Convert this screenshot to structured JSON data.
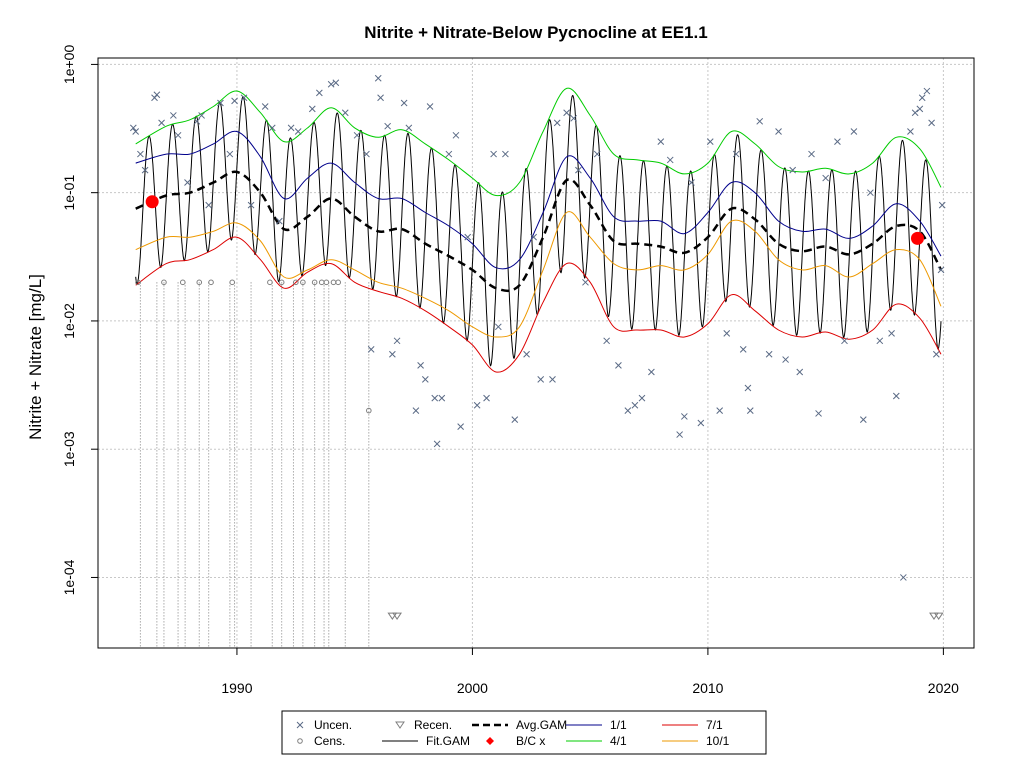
{
  "chart_data": {
    "type": "line",
    "title": "Nitrite + Nitrate-Below Pycnocline at EE1.1",
    "xlabel": "",
    "ylabel": "Nitrite + Nitrate [mg/L]",
    "xlim": [
      1984.1,
      2021.3
    ],
    "ylim_log10": [
      -4.55,
      0.05
    ],
    "y_scale": "log",
    "grid": true,
    "x_ticks": [
      1990,
      2000,
      2010,
      2020
    ],
    "y_ticks": [
      {
        "value": 1.0,
        "label": "1e+00"
      },
      {
        "value": 0.1,
        "label": "1e-01"
      },
      {
        "value": 0.01,
        "label": "1e-02"
      },
      {
        "value": 0.001,
        "label": "1e-03"
      },
      {
        "value": 0.0001,
        "label": "1e-04"
      }
    ],
    "colors": {
      "uncensored": "#5a6a85",
      "censored": "#7f7f7f",
      "avg_gam": "#000000",
      "fit_gam": "#000000",
      "bc": "#ff0000",
      "jan": "#00008b",
      "apr": "#00cc00",
      "jul": "#dd0000",
      "oct": "#ee9900",
      "grid": "#c8c8c8"
    },
    "series": [
      {
        "name": "Avg.GAM",
        "style": "dashed-thick",
        "x": [
          1985.7,
          1987,
          1988,
          1989,
          1990,
          1991,
          1992,
          1993,
          1994,
          1995,
          1996,
          1997,
          1998,
          1999,
          2000,
          2001,
          2002,
          2003,
          2004,
          2005,
          2006,
          2007,
          2008,
          2009,
          2010,
          2011,
          2012,
          2013,
          2014,
          2015,
          2016,
          2017,
          2018,
          2019,
          2019.9
        ],
        "y": [
          0.075,
          0.095,
          0.1,
          0.12,
          0.145,
          0.1,
          0.052,
          0.065,
          0.09,
          0.065,
          0.05,
          0.052,
          0.04,
          0.032,
          0.025,
          0.018,
          0.019,
          0.045,
          0.125,
          0.08,
          0.042,
          0.04,
          0.038,
          0.034,
          0.045,
          0.075,
          0.062,
          0.04,
          0.035,
          0.038,
          0.033,
          0.04,
          0.055,
          0.05,
          0.025
        ]
      },
      {
        "name": "1/1",
        "x": [
          1985.7,
          1987,
          1988,
          1989,
          1990,
          1991,
          1992,
          1993,
          1994,
          1995,
          1996,
          1997,
          1998,
          1999,
          2000,
          2001,
          2002,
          2003,
          2004,
          2005,
          2006,
          2007,
          2008,
          2009,
          2010,
          2011,
          2012,
          2013,
          2014,
          2015,
          2016,
          2017,
          2018,
          2019,
          2019.9
        ],
        "y": [
          0.17,
          0.2,
          0.2,
          0.24,
          0.3,
          0.19,
          0.09,
          0.13,
          0.17,
          0.12,
          0.09,
          0.09,
          0.07,
          0.055,
          0.04,
          0.026,
          0.03,
          0.07,
          0.19,
          0.13,
          0.065,
          0.06,
          0.06,
          0.048,
          0.07,
          0.12,
          0.1,
          0.06,
          0.05,
          0.052,
          0.044,
          0.055,
          0.082,
          0.06,
          0.032
        ]
      },
      {
        "name": "4/1",
        "x": [
          1985.7,
          1987,
          1988,
          1989,
          1990,
          1991,
          1992,
          1993,
          1994,
          1995,
          1996,
          1997,
          1998,
          1999,
          2000,
          2001,
          2002,
          2003,
          2004,
          2005,
          2006,
          2007,
          2008,
          2009,
          2010,
          2011,
          2012,
          2013,
          2014,
          2015,
          2016,
          2017,
          2018,
          2019,
          2019.9
        ],
        "y": [
          0.24,
          0.33,
          0.37,
          0.47,
          0.62,
          0.42,
          0.25,
          0.32,
          0.46,
          0.32,
          0.27,
          0.31,
          0.24,
          0.18,
          0.13,
          0.095,
          0.12,
          0.3,
          0.65,
          0.4,
          0.2,
          0.18,
          0.17,
          0.14,
          0.17,
          0.3,
          0.24,
          0.16,
          0.145,
          0.155,
          0.14,
          0.17,
          0.27,
          0.22,
          0.11
        ]
      },
      {
        "name": "7/1",
        "x": [
          1985.7,
          1987,
          1988,
          1989,
          1990,
          1991,
          1992,
          1993,
          1994,
          1995,
          1996,
          1997,
          1998,
          1999,
          2000,
          2001,
          2002,
          2003,
          2004,
          2005,
          2006,
          2007,
          2008,
          2009,
          2010,
          2011,
          2012,
          2013,
          2014,
          2015,
          2016,
          2017,
          2018,
          2019,
          2019.9
        ],
        "y": [
          0.019,
          0.028,
          0.03,
          0.036,
          0.045,
          0.03,
          0.018,
          0.024,
          0.028,
          0.02,
          0.017,
          0.015,
          0.012,
          0.009,
          0.0065,
          0.004,
          0.0055,
          0.014,
          0.028,
          0.02,
          0.009,
          0.0085,
          0.0085,
          0.0075,
          0.0095,
          0.016,
          0.012,
          0.0085,
          0.0075,
          0.0082,
          0.0072,
          0.0085,
          0.0135,
          0.0105,
          0.0055
        ]
      },
      {
        "name": "10/1",
        "x": [
          1985.7,
          1987,
          1988,
          1989,
          1990,
          1991,
          1992,
          1993,
          1994,
          1995,
          1996,
          1997,
          1998,
          1999,
          2000,
          2001,
          2002,
          2003,
          2004,
          2005,
          2006,
          2007,
          2008,
          2009,
          2010,
          2011,
          2012,
          2013,
          2014,
          2015,
          2016,
          2017,
          2018,
          2019,
          2019.9
        ],
        "y": [
          0.036,
          0.045,
          0.045,
          0.05,
          0.058,
          0.042,
          0.022,
          0.025,
          0.03,
          0.025,
          0.02,
          0.018,
          0.015,
          0.012,
          0.009,
          0.0075,
          0.009,
          0.025,
          0.07,
          0.045,
          0.028,
          0.025,
          0.027,
          0.025,
          0.033,
          0.06,
          0.05,
          0.03,
          0.025,
          0.027,
          0.022,
          0.028,
          0.036,
          0.03,
          0.013
        ]
      }
    ],
    "fit_gam": {
      "name": "Fit.GAM",
      "x_start": 1985.7,
      "x_end": 2019.9,
      "peak_month": 3.2,
      "trough_month": 8.5
    },
    "bc_points": [
      {
        "x": 1986.4,
        "y": 0.085
      },
      {
        "x": 2018.9,
        "y": 0.044
      }
    ],
    "uncensored": [
      {
        "x": 1985.6,
        "y": 0.32
      },
      {
        "x": 1985.7,
        "y": 0.3
      },
      {
        "x": 1985.9,
        "y": 0.2
      },
      {
        "x": 1986.1,
        "y": 0.15
      },
      {
        "x": 1986.5,
        "y": 0.55
      },
      {
        "x": 1986.6,
        "y": 0.58
      },
      {
        "x": 1986.8,
        "y": 0.35
      },
      {
        "x": 1987.3,
        "y": 0.4
      },
      {
        "x": 1987.5,
        "y": 0.28
      },
      {
        "x": 1987.9,
        "y": 0.12
      },
      {
        "x": 1988.3,
        "y": 0.36
      },
      {
        "x": 1988.5,
        "y": 0.4
      },
      {
        "x": 1988.8,
        "y": 0.08
      },
      {
        "x": 1989.3,
        "y": 0.5
      },
      {
        "x": 1989.7,
        "y": 0.2
      },
      {
        "x": 1989.9,
        "y": 0.52
      },
      {
        "x": 1990.3,
        "y": 0.55
      },
      {
        "x": 1990.6,
        "y": 0.08
      },
      {
        "x": 1991.2,
        "y": 0.47
      },
      {
        "x": 1991.5,
        "y": 0.32
      },
      {
        "x": 1991.8,
        "y": 0.06
      },
      {
        "x": 1992.3,
        "y": 0.32
      },
      {
        "x": 1992.6,
        "y": 0.3
      },
      {
        "x": 1993.2,
        "y": 0.45
      },
      {
        "x": 1993.5,
        "y": 0.6
      },
      {
        "x": 1994.0,
        "y": 0.7
      },
      {
        "x": 1994.2,
        "y": 0.72
      },
      {
        "x": 1994.6,
        "y": 0.42
      },
      {
        "x": 1995.1,
        "y": 0.28
      },
      {
        "x": 1995.5,
        "y": 0.2
      },
      {
        "x": 1995.7,
        "y": 0.006
      },
      {
        "x": 1996.0,
        "y": 0.78
      },
      {
        "x": 1996.1,
        "y": 0.55
      },
      {
        "x": 1996.4,
        "y": 0.33
      },
      {
        "x": 1996.6,
        "y": 0.0055
      },
      {
        "x": 1996.8,
        "y": 0.007
      },
      {
        "x": 1997.1,
        "y": 0.5
      },
      {
        "x": 1997.3,
        "y": 0.32
      },
      {
        "x": 1997.6,
        "y": 0.002
      },
      {
        "x": 1997.8,
        "y": 0.0045
      },
      {
        "x": 1998.0,
        "y": 0.0035
      },
      {
        "x": 1998.2,
        "y": 0.47
      },
      {
        "x": 1998.4,
        "y": 0.0025
      },
      {
        "x": 1998.5,
        "y": 0.0011
      },
      {
        "x": 1998.7,
        "y": 0.0025
      },
      {
        "x": 1999.0,
        "y": 0.2
      },
      {
        "x": 1999.3,
        "y": 0.28
      },
      {
        "x": 1999.5,
        "y": 0.0015
      },
      {
        "x": 1999.8,
        "y": 0.045
      },
      {
        "x": 2000.2,
        "y": 0.0022
      },
      {
        "x": 2000.6,
        "y": 0.0025
      },
      {
        "x": 2000.9,
        "y": 0.2
      },
      {
        "x": 2001.1,
        "y": 0.009
      },
      {
        "x": 2001.4,
        "y": 0.2
      },
      {
        "x": 2001.8,
        "y": 0.0017
      },
      {
        "x": 2002.3,
        "y": 0.0055
      },
      {
        "x": 2002.6,
        "y": 0.045
      },
      {
        "x": 2002.9,
        "y": 0.0035
      },
      {
        "x": 2003.4,
        "y": 0.0035
      },
      {
        "x": 2003.6,
        "y": 0.35
      },
      {
        "x": 2004.0,
        "y": 0.42
      },
      {
        "x": 2004.3,
        "y": 0.38
      },
      {
        "x": 2004.5,
        "y": 0.15
      },
      {
        "x": 2004.8,
        "y": 0.02
      },
      {
        "x": 2005.3,
        "y": 0.2
      },
      {
        "x": 2005.7,
        "y": 0.007
      },
      {
        "x": 2006.2,
        "y": 0.0045
      },
      {
        "x": 2006.6,
        "y": 0.002
      },
      {
        "x": 2006.9,
        "y": 0.0022
      },
      {
        "x": 2007.2,
        "y": 0.0025
      },
      {
        "x": 2007.6,
        "y": 0.004
      },
      {
        "x": 2008.0,
        "y": 0.25
      },
      {
        "x": 2008.4,
        "y": 0.18
      },
      {
        "x": 2008.8,
        "y": 0.0013
      },
      {
        "x": 2009.0,
        "y": 0.0018
      },
      {
        "x": 2009.3,
        "y": 0.12
      },
      {
        "x": 2009.7,
        "y": 0.0016
      },
      {
        "x": 2010.1,
        "y": 0.25
      },
      {
        "x": 2010.5,
        "y": 0.002
      },
      {
        "x": 2010.8,
        "y": 0.008
      },
      {
        "x": 2011.2,
        "y": 0.2
      },
      {
        "x": 2011.5,
        "y": 0.006
      },
      {
        "x": 2011.7,
        "y": 0.003
      },
      {
        "x": 2011.8,
        "y": 0.002
      },
      {
        "x": 2012.2,
        "y": 0.36
      },
      {
        "x": 2012.6,
        "y": 0.0055
      },
      {
        "x": 2013.0,
        "y": 0.3
      },
      {
        "x": 2013.3,
        "y": 0.005
      },
      {
        "x": 2013.6,
        "y": 0.15
      },
      {
        "x": 2013.9,
        "y": 0.004
      },
      {
        "x": 2014.4,
        "y": 0.2
      },
      {
        "x": 2014.7,
        "y": 0.0019
      },
      {
        "x": 2015.0,
        "y": 0.13
      },
      {
        "x": 2015.5,
        "y": 0.25
      },
      {
        "x": 2015.8,
        "y": 0.007
      },
      {
        "x": 2016.2,
        "y": 0.3
      },
      {
        "x": 2016.6,
        "y": 0.0017
      },
      {
        "x": 2016.9,
        "y": 0.1
      },
      {
        "x": 2017.3,
        "y": 0.007
      },
      {
        "x": 2017.8,
        "y": 0.008
      },
      {
        "x": 2018.0,
        "y": 0.0026
      },
      {
        "x": 2018.3,
        "y": 0.0001
      },
      {
        "x": 2018.6,
        "y": 0.3
      },
      {
        "x": 2018.8,
        "y": 0.42
      },
      {
        "x": 2019.0,
        "y": 0.45
      },
      {
        "x": 2019.1,
        "y": 0.55
      },
      {
        "x": 2019.3,
        "y": 0.62
      },
      {
        "x": 2019.5,
        "y": 0.35
      },
      {
        "x": 2019.7,
        "y": 0.0055
      },
      {
        "x": 2019.9,
        "y": 0.025
      },
      {
        "x": 2019.95,
        "y": 0.08
      }
    ],
    "censored": [
      {
        "x": 1985.8,
        "y": 0.02
      },
      {
        "x": 1986.9,
        "y": 0.02
      },
      {
        "x": 1987.7,
        "y": 0.02
      },
      {
        "x": 1988.4,
        "y": 0.02
      },
      {
        "x": 1988.9,
        "y": 0.02
      },
      {
        "x": 1989.8,
        "y": 0.02
      },
      {
        "x": 1991.4,
        "y": 0.02
      },
      {
        "x": 1991.9,
        "y": 0.02
      },
      {
        "x": 1992.5,
        "y": 0.02
      },
      {
        "x": 1992.8,
        "y": 0.02
      },
      {
        "x": 1993.3,
        "y": 0.02
      },
      {
        "x": 1993.6,
        "y": 0.02
      },
      {
        "x": 1993.8,
        "y": 0.02
      },
      {
        "x": 1994.1,
        "y": 0.02
      },
      {
        "x": 1994.3,
        "y": 0.02
      },
      {
        "x": 1995.6,
        "y": 0.002
      }
    ],
    "recensored": [
      {
        "x": 1996.6,
        "y": 5e-05
      },
      {
        "x": 1996.8,
        "y": 5e-05
      },
      {
        "x": 2019.6,
        "y": 5e-05
      },
      {
        "x": 2019.8,
        "y": 5e-05
      }
    ],
    "censor_lines_x": [
      1985.9,
      1986.6,
      1986.9,
      1987.5,
      1987.8,
      1988.4,
      1988.8,
      1989.7,
      1989.9,
      1990.6,
      1991.5,
      1991.9,
      1992.4,
      1992.8,
      1993.3,
      1993.7,
      1993.9,
      1994.6,
      1995.6
    ],
    "legend": {
      "placement": "bottom-center",
      "items": [
        {
          "label": "Uncen.",
          "key": "uncen"
        },
        {
          "label": "Cens.",
          "key": "cens"
        },
        {
          "label": "Recen.",
          "key": "recen"
        },
        {
          "label": "Fit.GAM",
          "key": "fitgam"
        },
        {
          "label": "Avg.GAM",
          "key": "avggam"
        },
        {
          "label": "B/C x",
          "key": "bc"
        },
        {
          "label": "1/1",
          "key": "jan"
        },
        {
          "label": "4/1",
          "key": "apr"
        },
        {
          "label": "7/1",
          "key": "jul"
        },
        {
          "label": "10/1",
          "key": "oct"
        }
      ]
    }
  }
}
